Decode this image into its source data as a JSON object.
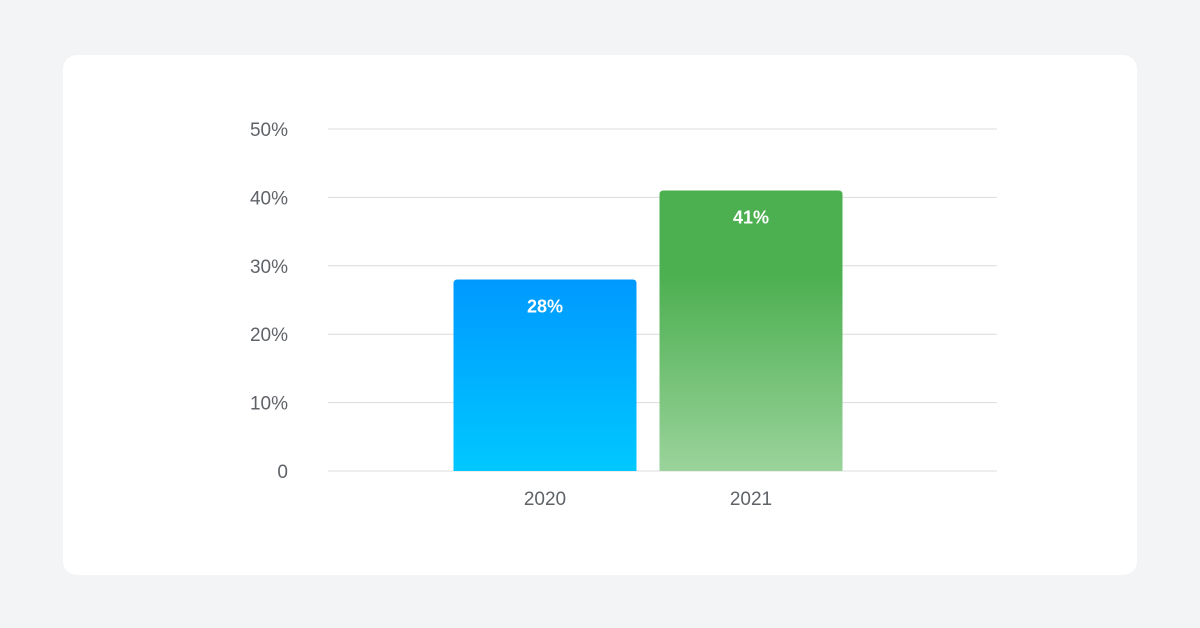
{
  "colors": {
    "page_background": "#f3f4f6",
    "card_background": "#ffffff",
    "gridline": "#dcdcdc",
    "tick_text": "#5f6368",
    "bar_label_text": "#ffffff"
  },
  "chart_data": {
    "type": "bar",
    "title": "",
    "xlabel": "",
    "ylabel": "",
    "categories": [
      "2020",
      "2021"
    ],
    "values": [
      28,
      41
    ],
    "value_labels": [
      "28%",
      "41%"
    ],
    "ylim": [
      0,
      50
    ],
    "yticks": [
      {
        "value": 0,
        "label": "0"
      },
      {
        "value": 10,
        "label": "10%"
      },
      {
        "value": 20,
        "label": "20%"
      },
      {
        "value": 30,
        "label": "30%"
      },
      {
        "value": 40,
        "label": "40%"
      },
      {
        "value": 50,
        "label": "50%"
      }
    ],
    "grid": true,
    "legend": "none",
    "bar_colors": [
      {
        "top": "#0099ff",
        "bottom": "#00c8ff"
      },
      {
        "top": "#4caf50",
        "bottom": "#9ad39b"
      }
    ]
  }
}
